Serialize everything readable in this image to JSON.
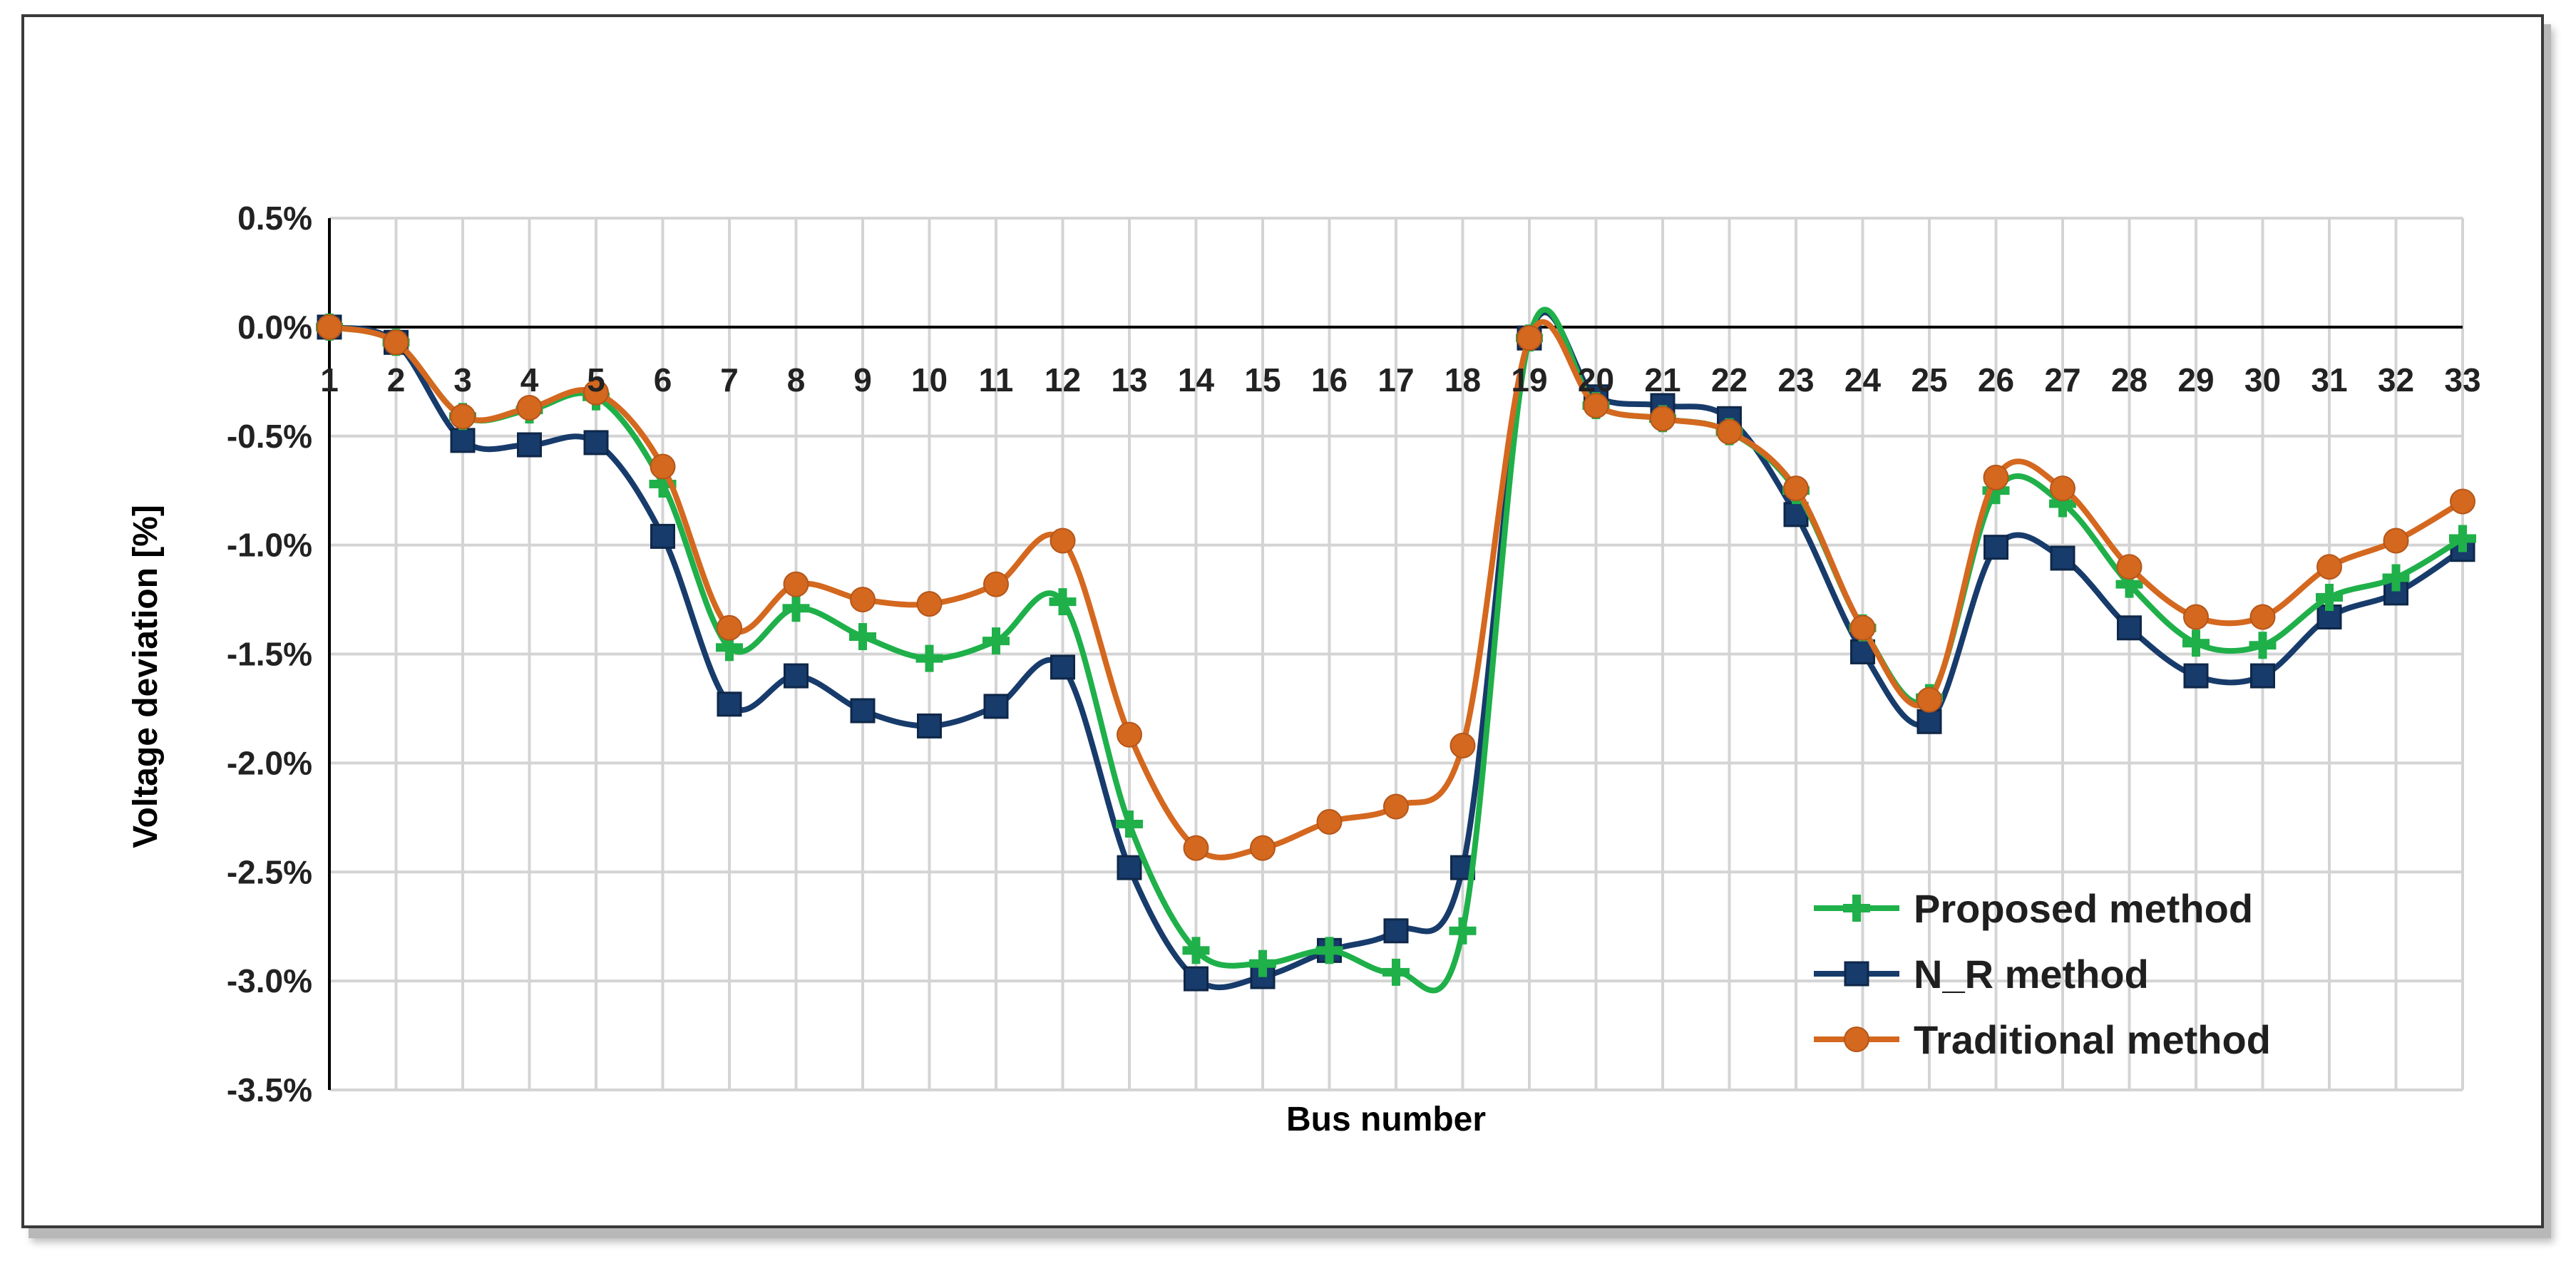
{
  "chart_data": {
    "type": "line",
    "title": "",
    "xlabel": "Bus number",
    "ylabel": "Voltage deviation [%]",
    "categories": [
      1,
      2,
      3,
      4,
      5,
      6,
      7,
      8,
      9,
      10,
      11,
      12,
      13,
      14,
      15,
      16,
      17,
      18,
      19,
      20,
      21,
      22,
      23,
      24,
      25,
      26,
      27,
      28,
      29,
      30,
      31,
      32,
      33
    ],
    "ylim": [
      -3.5,
      0.5
    ],
    "yticks": [
      0.5,
      0.0,
      -0.5,
      -1.0,
      -1.5,
      -2.0,
      -2.5,
      -3.0,
      -3.5
    ],
    "ytick_labels": [
      "0.5%",
      "0.0%",
      "-0.5%",
      "-1.0%",
      "-1.5%",
      "-2.0%",
      "-2.5%",
      "-3.0%",
      "-3.5%"
    ],
    "grid": true,
    "legend_position": "bottom-right",
    "series": [
      {
        "name": "Proposed method",
        "color": "#1fb04a",
        "marker": "plus",
        "values": [
          0.0,
          -0.07,
          -0.41,
          -0.38,
          -0.32,
          -0.72,
          -1.47,
          -1.29,
          -1.42,
          -1.52,
          -1.44,
          -1.26,
          -2.28,
          -2.86,
          -2.92,
          -2.86,
          -2.96,
          -2.77,
          -0.05,
          -0.36,
          -0.42,
          -0.48,
          -0.75,
          -1.38,
          -1.7,
          -0.75,
          -0.81,
          -1.18,
          -1.45,
          -1.46,
          -1.24,
          -1.15,
          -0.97
        ]
      },
      {
        "name": "N_R method",
        "color": "#173b6b",
        "marker": "square",
        "values": [
          0.0,
          -0.07,
          -0.52,
          -0.54,
          -0.53,
          -0.96,
          -1.73,
          -1.6,
          -1.76,
          -1.83,
          -1.74,
          -1.56,
          -2.48,
          -2.99,
          -2.98,
          -2.86,
          -2.77,
          -2.48,
          -0.05,
          -0.32,
          -0.36,
          -0.42,
          -0.86,
          -1.49,
          -1.81,
          -1.01,
          -1.06,
          -1.38,
          -1.6,
          -1.6,
          -1.33,
          -1.22,
          -1.02
        ]
      },
      {
        "name": "Traditional method",
        "color": "#d4681f",
        "marker": "circle",
        "values": [
          0.0,
          -0.07,
          -0.41,
          -0.37,
          -0.3,
          -0.64,
          -1.38,
          -1.18,
          -1.25,
          -1.27,
          -1.18,
          -0.98,
          -1.87,
          -2.39,
          -2.39,
          -2.27,
          -2.2,
          -1.92,
          -0.05,
          -0.36,
          -0.42,
          -0.48,
          -0.74,
          -1.38,
          -1.71,
          -0.69,
          -0.74,
          -1.1,
          -1.33,
          -1.33,
          -1.1,
          -0.98,
          -0.8
        ]
      }
    ]
  }
}
